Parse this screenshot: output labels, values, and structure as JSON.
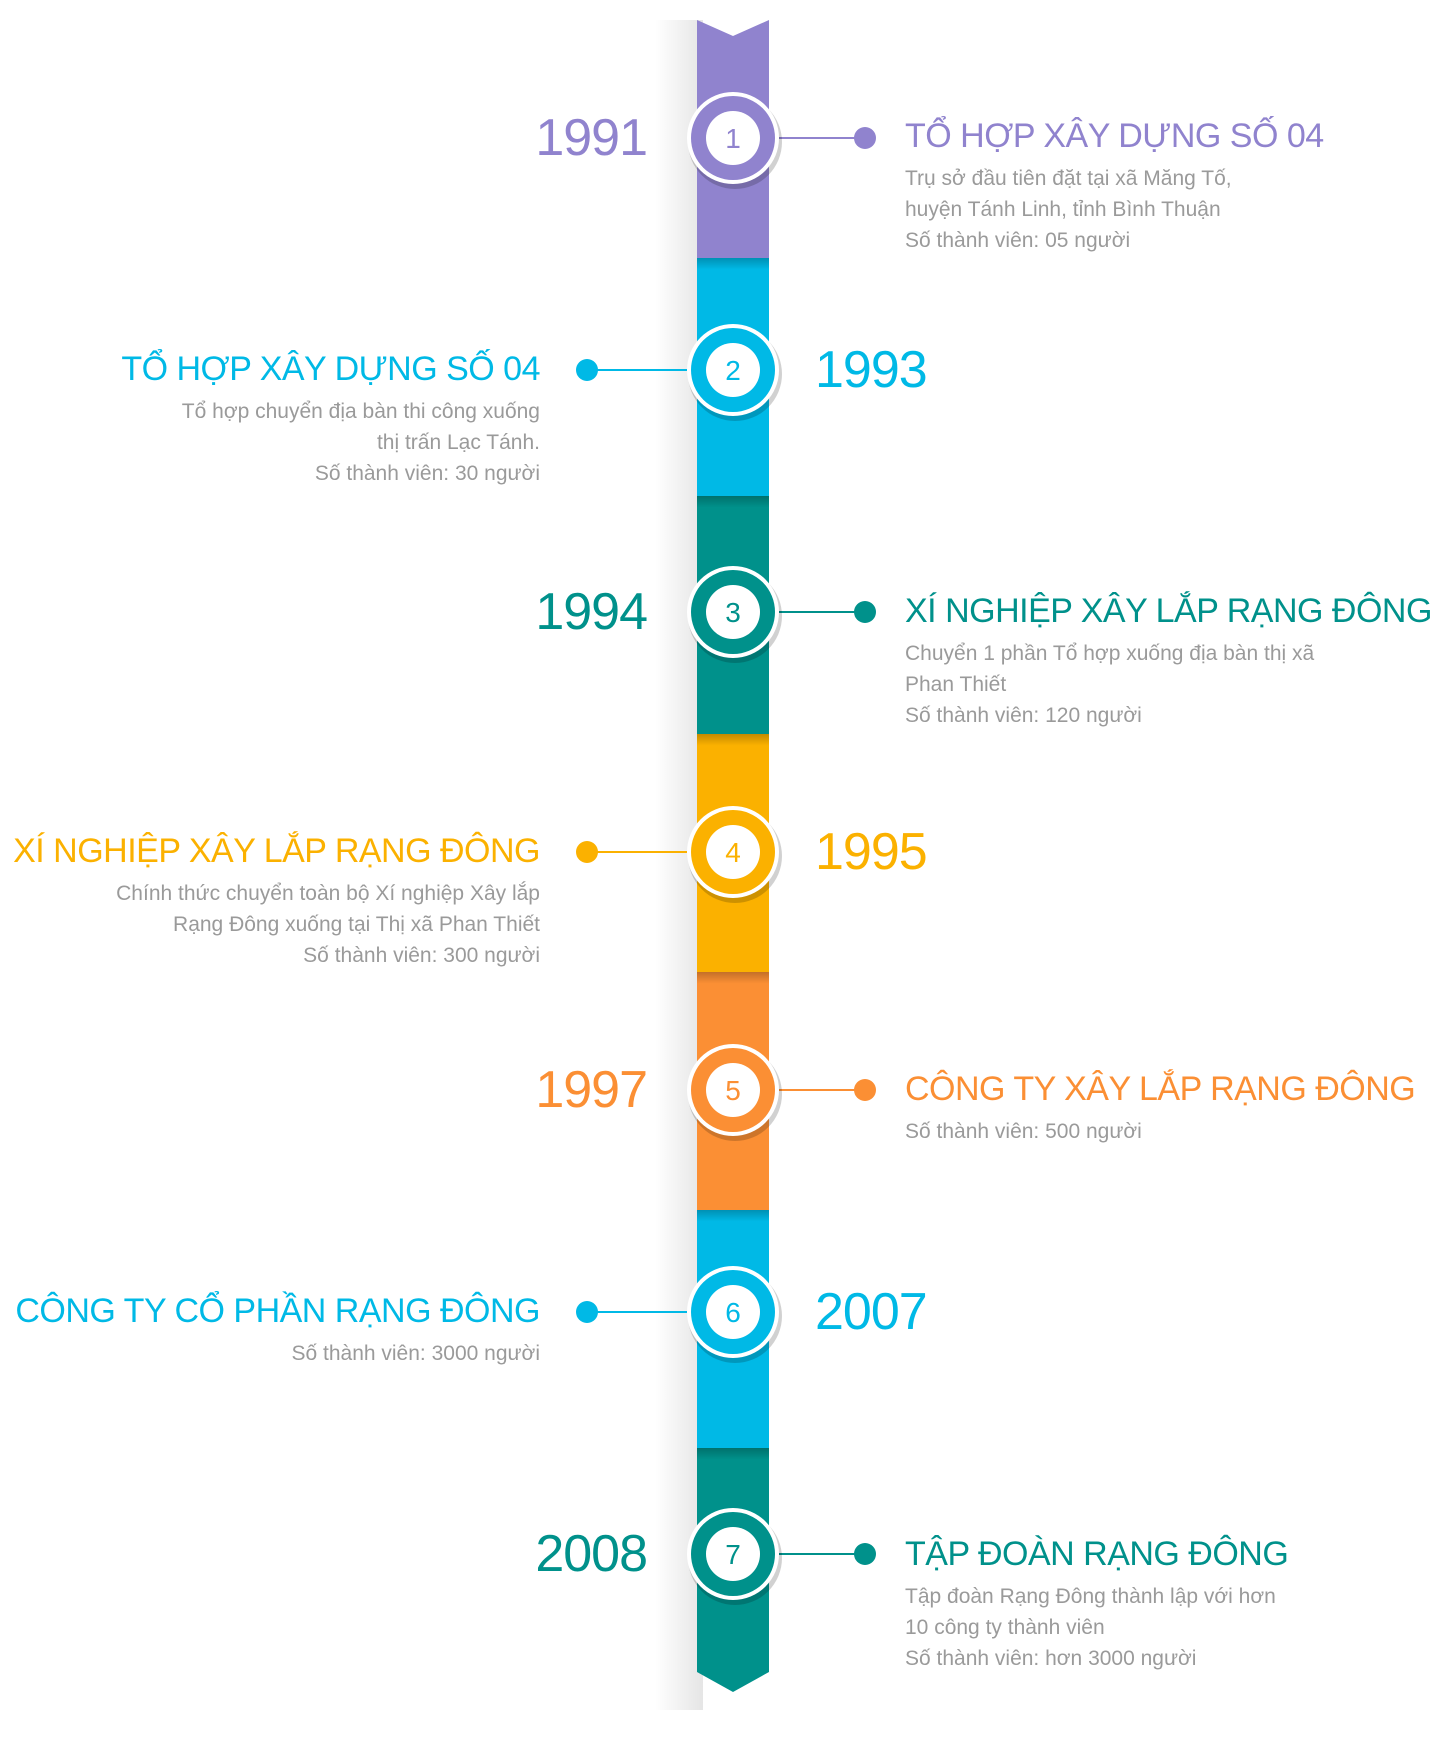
{
  "events": [
    {
      "number": "1",
      "year": "1991",
      "title": "TỔ HỢP XÂY DỰNG SỐ 04",
      "side": "right",
      "color": "#9083ce",
      "desc": [
        "Trụ sở đầu tiên đặt tại xã Măng Tố,",
        "huyện Tánh Linh, tỉnh Bình Thuận",
        "Số thành viên: 05 người"
      ]
    },
    {
      "number": "2",
      "year": "1993",
      "title": "TỔ HỢP XÂY DỰNG SỐ 04",
      "side": "left",
      "color": "#00b9e6",
      "desc": [
        "Tổ hợp chuyển địa bàn thi công xuống",
        "thị trấn Lạc Tánh.",
        "Số thành viên: 30 người"
      ]
    },
    {
      "number": "3",
      "year": "1994",
      "title": "XÍ NGHIỆP XÂY LẮP RẠNG ĐÔNG",
      "side": "right",
      "color": "#00918b",
      "desc": [
        "Chuyển 1 phần Tổ hợp xuống địa bàn thị xã",
        "Phan Thiết",
        "Số thành viên: 120 người"
      ]
    },
    {
      "number": "4",
      "year": "1995",
      "title": "XÍ NGHIỆP XÂY LẮP RẠNG ĐÔNG",
      "side": "left",
      "color": "#fbb100",
      "desc": [
        "Chính thức chuyển toàn bộ Xí nghiệp Xây lắp",
        "Rạng Đông xuống tại Thị xã Phan Thiết",
        "Số thành viên: 300 người"
      ]
    },
    {
      "number": "5",
      "year": "1997",
      "title": "CÔNG TY XÂY LẮP RẠNG ĐÔNG",
      "side": "right",
      "color": "#fb8f34",
      "desc": [
        "Số thành viên: 500 người"
      ]
    },
    {
      "number": "6",
      "year": "2007",
      "title": "CÔNG TY CỔ PHẦN RẠNG ĐÔNG",
      "side": "left",
      "color": "#00b9e6",
      "desc": [
        "Số thành viên: 3000 người"
      ]
    },
    {
      "number": "7",
      "year": "2008",
      "title": "TẬP ĐOÀN RẠNG ĐÔNG",
      "side": "right",
      "color": "#00918b",
      "desc": [
        "Tập đoàn Rạng Đông thành lập với hơn",
        "10 công ty thành viên",
        "Số thành viên: hơn 3000 người"
      ]
    }
  ]
}
